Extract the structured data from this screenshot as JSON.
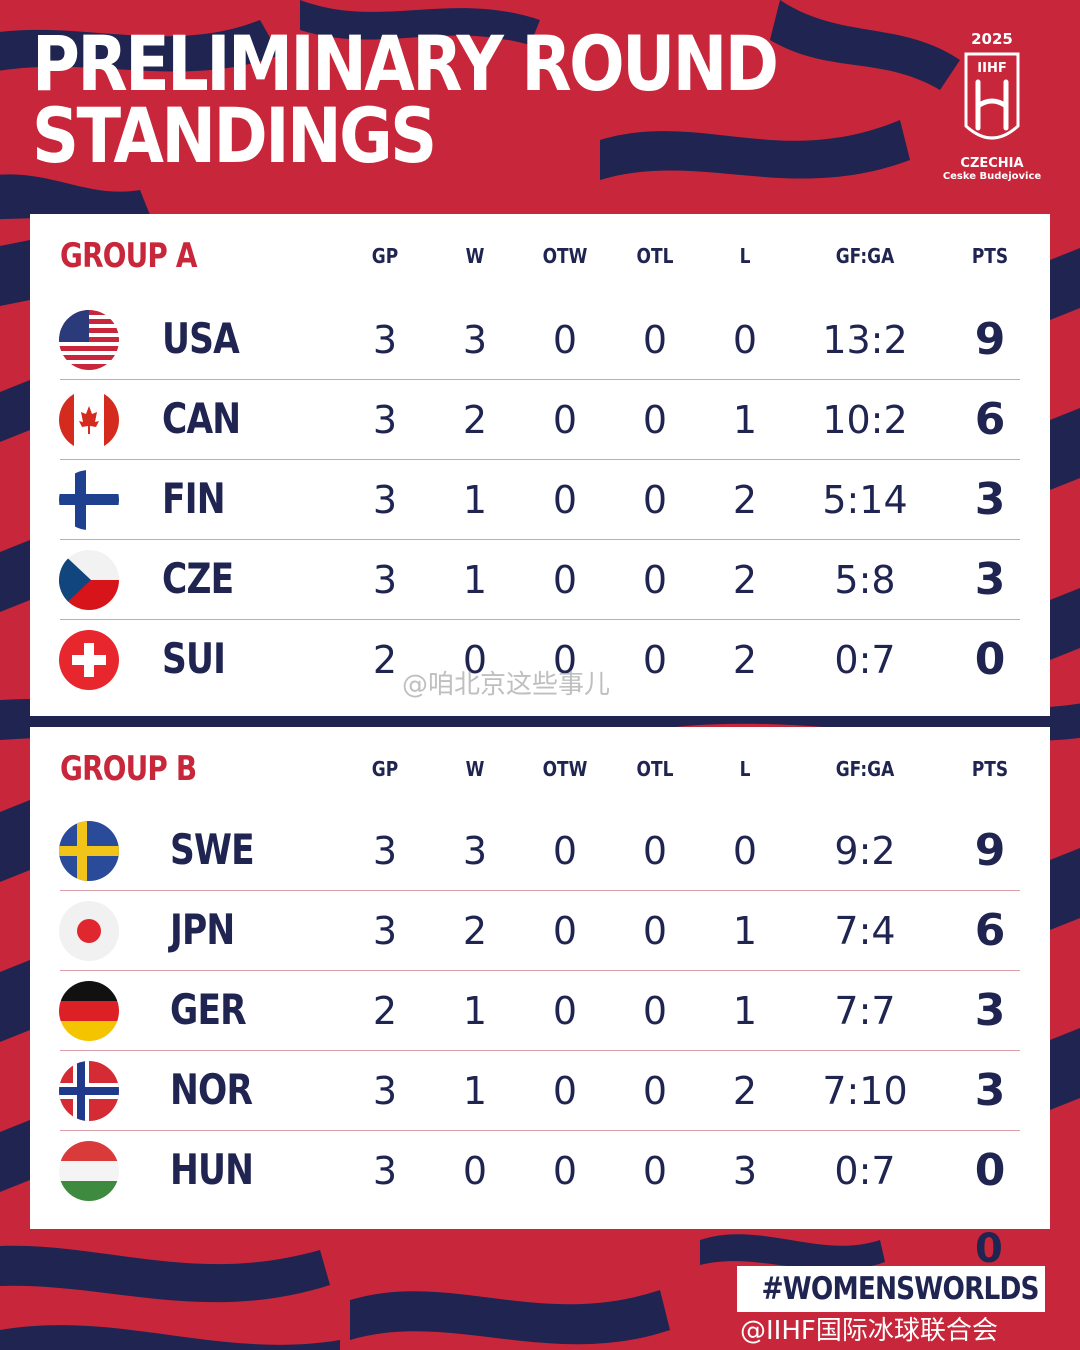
{
  "title": {
    "line1": "PRELIMINARY ROUND",
    "line2": "STANDINGS"
  },
  "logo": {
    "year": "2025",
    "brand": "IIHF",
    "country": "CZECHIA",
    "city": "Ceske Budejovice"
  },
  "columns": [
    "GP",
    "W",
    "OTW",
    "OTL",
    "L",
    "GF:GA",
    "PTS"
  ],
  "groups": [
    {
      "name": "GROUP A",
      "rows": [
        {
          "team": "USA",
          "flag": "usa-flag-icon",
          "gp": "3",
          "w": "3",
          "otw": "0",
          "otl": "0",
          "l": "0",
          "gfga": "13:2",
          "pts": "9"
        },
        {
          "team": "CAN",
          "flag": "canada-flag-icon",
          "gp": "3",
          "w": "2",
          "otw": "0",
          "otl": "0",
          "l": "1",
          "gfga": "10:2",
          "pts": "6"
        },
        {
          "team": "FIN",
          "flag": "finland-flag-icon",
          "gp": "3",
          "w": "1",
          "otw": "0",
          "otl": "0",
          "l": "2",
          "gfga": "5:14",
          "pts": "3"
        },
        {
          "team": "CZE",
          "flag": "czechia-flag-icon",
          "gp": "3",
          "w": "1",
          "otw": "0",
          "otl": "0",
          "l": "2",
          "gfga": "5:8",
          "pts": "3"
        },
        {
          "team": "SUI",
          "flag": "switzerland-flag-icon",
          "gp": "2",
          "w": "0",
          "otw": "0",
          "otl": "0",
          "l": "2",
          "gfga": "0:7",
          "pts": "0"
        }
      ]
    },
    {
      "name": "GROUP B",
      "rows": [
        {
          "team": "SWE",
          "flag": "sweden-flag-icon",
          "gp": "3",
          "w": "3",
          "otw": "0",
          "otl": "0",
          "l": "0",
          "gfga": "9:2",
          "pts": "9"
        },
        {
          "team": "JPN",
          "flag": "japan-flag-icon",
          "gp": "3",
          "w": "2",
          "otw": "0",
          "otl": "0",
          "l": "1",
          "gfga": "7:4",
          "pts": "6"
        },
        {
          "team": "GER",
          "flag": "germany-flag-icon",
          "gp": "2",
          "w": "1",
          "otw": "0",
          "otl": "0",
          "l": "1",
          "gfga": "7:7",
          "pts": "3"
        },
        {
          "team": "NOR",
          "flag": "norway-flag-icon",
          "gp": "3",
          "w": "1",
          "otw": "0",
          "otl": "0",
          "l": "2",
          "gfga": "7:10",
          "pts": "3"
        },
        {
          "team": "HUN",
          "flag": "hungary-flag-icon",
          "gp": "3",
          "w": "0",
          "otw": "0",
          "otl": "0",
          "l": "3",
          "gfga": "0:7",
          "pts": "0"
        }
      ]
    }
  ],
  "hashtag": "#WOMENSWORLDS",
  "stray_digit": "0",
  "watermarks": [
    "@咱北京这些事儿",
    "@IIHF国际冰球联合会"
  ],
  "colors": {
    "red": "#c8263a",
    "navy": "#1f2450",
    "white": "#ffffff"
  }
}
